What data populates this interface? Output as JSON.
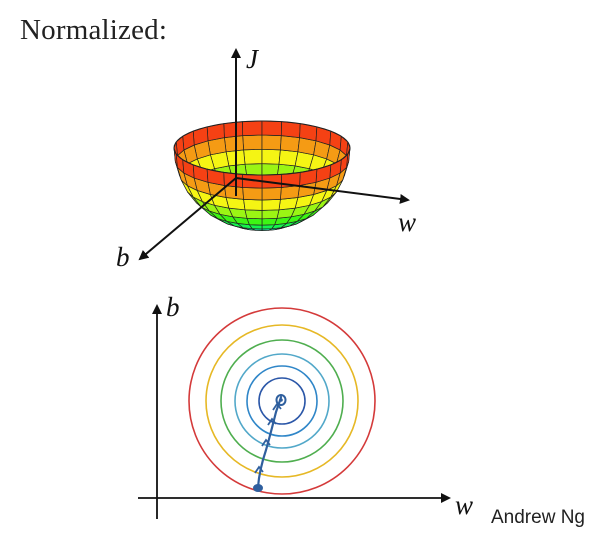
{
  "title": "Normalized:",
  "credit": "Andrew Ng",
  "surface_plot": {
    "axis_labels": {
      "vertical": "J",
      "right": "w",
      "front": "b"
    }
  },
  "contour_plot": {
    "axis_labels": {
      "x": "w",
      "y": "b"
    },
    "rings": [
      {
        "color": "#d43a3a"
      },
      {
        "color": "#e6b825"
      },
      {
        "color": "#4fae4f"
      },
      {
        "color": "#52a8c9"
      },
      {
        "color": "#2f86c8"
      },
      {
        "color": "#2b57a8"
      }
    ],
    "path_color": "#2f5f9e"
  }
}
